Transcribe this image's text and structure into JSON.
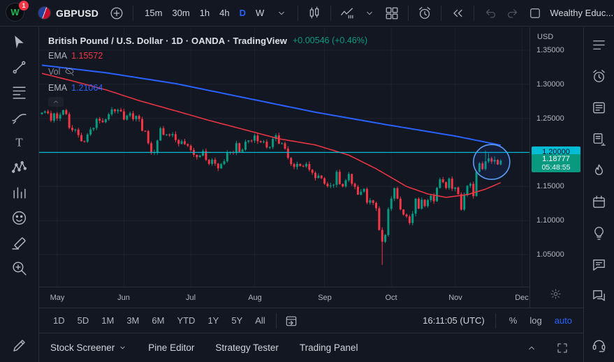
{
  "topbar": {
    "notification_count": "1",
    "symbol": "GBPUSD",
    "intervals": [
      {
        "label": "15m"
      },
      {
        "label": "30m"
      },
      {
        "label": "1h"
      },
      {
        "label": "4h"
      },
      {
        "label": "D",
        "active": true
      },
      {
        "label": "W"
      }
    ],
    "layout_name": "Wealthy Educ..."
  },
  "left_toolbar": {
    "tools": [
      "cursor",
      "trend-line",
      "fib-retracement",
      "brush",
      "text",
      "xabcd-pattern",
      "forecast",
      "emoji",
      "measure",
      "zoom-in"
    ],
    "bottom_tool": "edit"
  },
  "right_sidebar": {
    "items": [
      "watchlist",
      "alerts",
      "news",
      "data-window",
      "hotlist",
      "calendar",
      "ideas",
      "chat",
      "conversations",
      "help"
    ]
  },
  "chart": {
    "legend": {
      "title": "British Pound / U.S. Dollar · 1D · OANDA · TradingView",
      "change": "+0.00546 (+0.46%)",
      "rows": [
        {
          "label": "EMA",
          "value": "1.15572",
          "value_color": "#f23645"
        },
        {
          "label": "Vol",
          "value": "",
          "hidden": true
        },
        {
          "label": "EMA",
          "value": "1.21064",
          "value_color": "#2962ff"
        }
      ]
    },
    "chart_data": {
      "type": "candlestick",
      "title": "GBPUSD 1D OANDA",
      "ylim": [
        1.03,
        1.36
      ],
      "closes": [
        1.2584,
        1.2601,
        1.2575,
        1.2466,
        1.2571,
        1.2498,
        1.2553,
        1.262,
        1.2562,
        1.236,
        1.2327,
        1.2335,
        1.2254,
        1.2165,
        1.2155,
        1.2263,
        1.2338,
        1.2359,
        1.2492,
        1.2465,
        1.2443,
        1.2485,
        1.256,
        1.2632,
        1.2605,
        1.2625,
        1.2602,
        1.2482,
        1.254,
        1.2573,
        1.2488,
        1.2536,
        1.249,
        1.2317,
        1.2313,
        1.2135,
        1.1992,
        1.2003,
        1.2175,
        1.2355,
        1.226,
        1.2262,
        1.225,
        1.2268,
        1.2182,
        1.2125,
        1.2164,
        1.2122,
        1.2098,
        1.2035,
        1.1964,
        1.193,
        1.1953,
        1.202,
        1.189,
        1.1833,
        1.1894,
        1.1836,
        1.1766,
        1.1828,
        1.187,
        1.1992,
        1.2003,
        1.1998,
        1.2135,
        1.201,
        1.204,
        1.2156,
        1.2174,
        1.2172,
        1.2248,
        1.2164,
        1.2149,
        1.2158,
        1.2074,
        1.2079,
        1.2199,
        1.225,
        1.2128,
        1.2134,
        1.2055,
        1.192,
        1.1827,
        1.1787,
        1.1832,
        1.1802,
        1.1794,
        1.183,
        1.1745,
        1.1701,
        1.1623,
        1.166,
        1.162,
        1.154,
        1.1503,
        1.1515,
        1.1525,
        1.1715,
        1.1535,
        1.15,
        1.159,
        1.1683,
        1.154,
        1.1496,
        1.138,
        1.1424,
        1.1464,
        1.1262,
        1.1297,
        1.1259,
        1.118,
        1.0861,
        1.0689,
        1.0788,
        1.117,
        1.1322,
        1.1475,
        1.132,
        1.1162,
        1.1087,
        1.106,
        1.0963,
        1.11,
        1.132,
        1.1175,
        1.1306,
        1.1213,
        1.13,
        1.1363,
        1.1282,
        1.1479,
        1.1605,
        1.1563,
        1.1479,
        1.1615,
        1.1467,
        1.1485,
        1.1387,
        1.116,
        1.1372,
        1.151,
        1.1539,
        1.1358,
        1.1715,
        1.1839,
        1.1755,
        1.1868,
        1.1912,
        1.1865,
        1.189,
        1.1823,
        1.18777
      ],
      "first_open": 1.256,
      "wick_overrides": {
        "112": {
          "low": 1.035
        },
        "146": {
          "high": 1.2028
        },
        "147": {
          "high": 1.199
        },
        "149": {
          "high": 1.1942
        }
      },
      "ema_fast_points": [
        [
          0,
          1.316
        ],
        [
          10,
          1.305
        ],
        [
          21,
          1.292
        ],
        [
          32,
          1.276
        ],
        [
          44,
          1.261
        ],
        [
          55,
          1.247
        ],
        [
          67,
          1.233
        ],
        [
          78,
          1.22
        ],
        [
          90,
          1.211
        ],
        [
          101,
          1.196
        ],
        [
          110,
          1.176
        ],
        [
          120,
          1.15
        ],
        [
          127,
          1.139
        ],
        [
          133,
          1.134
        ],
        [
          140,
          1.138
        ],
        [
          146,
          1.146
        ],
        [
          151,
          1.1557
        ]
      ],
      "ema_slow_points": [
        [
          0,
          1.328
        ],
        [
          21,
          1.317
        ],
        [
          44,
          1.301
        ],
        [
          67,
          1.28
        ],
        [
          90,
          1.259
        ],
        [
          113,
          1.241
        ],
        [
          136,
          1.224
        ],
        [
          151,
          1.2106
        ]
      ],
      "hline_price": 1.2,
      "ellipse": {
        "index": 148,
        "price": 1.186,
        "rx": 26,
        "ry": 25
      },
      "months": [
        {
          "label": "May",
          "index": 5
        },
        {
          "label": "Jun",
          "index": 27
        },
        {
          "label": "Jul",
          "index": 49
        },
        {
          "label": "Aug",
          "index": 70
        },
        {
          "label": "Sep",
          "index": 93
        },
        {
          "label": "Oct",
          "index": 115
        },
        {
          "label": "Nov",
          "index": 136
        },
        {
          "label": "Dec",
          "index": 158
        }
      ]
    }
  },
  "price_axis": {
    "currency": "USD",
    "levels": [
      {
        "text": "1.35000",
        "price": 1.35
      },
      {
        "text": "1.30000",
        "price": 1.3
      },
      {
        "text": "1.25000",
        "price": 1.25
      },
      {
        "text": "1.20000",
        "price": 1.2,
        "highlight": true
      },
      {
        "text": "1.15000",
        "price": 1.15
      },
      {
        "text": "1.10000",
        "price": 1.1
      },
      {
        "text": "1.05000",
        "price": 1.05
      }
    ],
    "current_badge": {
      "price_text": "1.18777",
      "countdown": "05:48:55",
      "price": 1.18777
    }
  },
  "range_bar": {
    "ranges": [
      "1D",
      "5D",
      "1M",
      "3M",
      "6M",
      "YTD",
      "1Y",
      "5Y",
      "All"
    ],
    "clock": "16:11:05 (UTC)",
    "percent_label": "%",
    "log_label": "log",
    "auto_label": "auto"
  },
  "footer": {
    "tabs": [
      "Stock Screener",
      "Pine Editor",
      "Strategy Tester",
      "Trading Panel"
    ]
  },
  "colors": {
    "bg": "#131722",
    "border": "#2a2e39",
    "text": "#d1d4dc",
    "muted": "#787b86",
    "accent": "#2962ff",
    "up": "#089981",
    "down": "#f23645",
    "hline": "#00bcd4",
    "ema_fast": "#f23645",
    "ema_slow": "#2962ff",
    "current_badge_bg": "#089981",
    "ellipse_stroke": "#5b9cf6"
  }
}
